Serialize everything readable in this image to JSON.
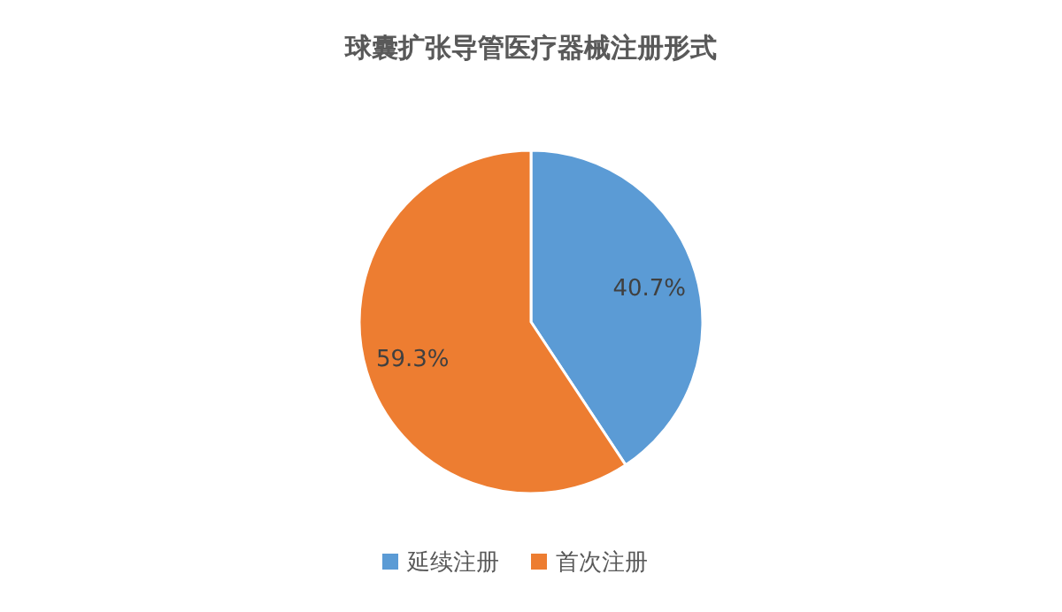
{
  "chart_data": {
    "type": "pie",
    "title": "球囊扩张导管医疗器械注册形式",
    "categories": [
      "延续注册",
      "首次注册"
    ],
    "values": [
      40.7,
      59.3
    ],
    "value_labels": [
      "40.7%",
      "59.3%"
    ],
    "colors": [
      "#5b9bd5",
      "#ed7d31"
    ],
    "legend": "bottom"
  }
}
